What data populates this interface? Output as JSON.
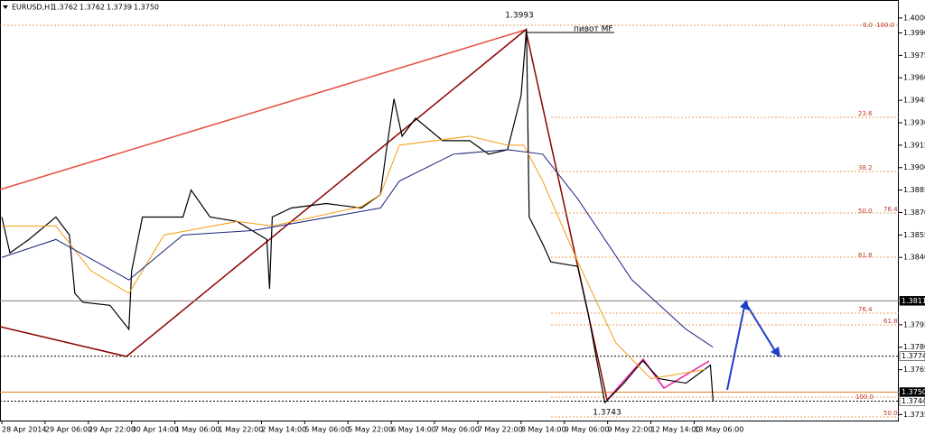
{
  "chart_data": {
    "type": "line",
    "title": "EURUSD,H1",
    "ohlc": [
      "1.3762",
      "1.3762",
      "1.3739",
      "1.3750"
    ],
    "xlim": [
      0,
      331
    ],
    "ylim": [
      1.3731,
      1.4012
    ],
    "xticks": [
      {
        "value": 0,
        "label": "28 Apr 2014"
      },
      {
        "value": 16,
        "label": "29 Apr 06:00"
      },
      {
        "value": 32,
        "label": "29 Apr 22:00"
      },
      {
        "value": 48,
        "label": "30 Apr 14:00"
      },
      {
        "value": 64,
        "label": "1 May 06:00"
      },
      {
        "value": 80,
        "label": "1 May 22:00"
      },
      {
        "value": 96,
        "label": "2 May 14:00"
      },
      {
        "value": 112,
        "label": "5 May 06:00"
      },
      {
        "value": 128,
        "label": "5 May 22:00"
      },
      {
        "value": 144,
        "label": "6 May 14:00"
      },
      {
        "value": 160,
        "label": "7 May 06:00"
      },
      {
        "value": 176,
        "label": "7 May 22:00"
      },
      {
        "value": 192,
        "label": "8 May 14:00"
      },
      {
        "value": 208,
        "label": "9 May 06:00"
      },
      {
        "value": 224,
        "label": "9 May 22:00"
      },
      {
        "value": 240,
        "label": "12 May 14:00"
      },
      {
        "value": 256,
        "label": "13 May 06:00"
      }
    ],
    "yticks": [
      {
        "value": 1.4,
        "label": "1.4000"
      },
      {
        "value": 1.399,
        "label": "1.3990"
      },
      1.3975,
      {
        "value": 1.396,
        "label": "1.3960"
      },
      1.3945,
      {
        "value": 1.393,
        "label": "1.3930"
      },
      1.3915,
      {
        "value": 1.39,
        "label": "1.3900"
      },
      1.3885,
      {
        "value": 1.387,
        "label": "1.3870"
      },
      1.3855,
      {
        "value": 1.384,
        "label": "1.3840"
      },
      1.3795,
      {
        "value": 1.378,
        "label": "1.3780"
      },
      1.3765,
      1.3735
    ],
    "series": [
      {
        "color": "#000000",
        "x": [
          0,
          3,
          10,
          20,
          25,
          27,
          30,
          40,
          47,
          48,
          52,
          67,
          70,
          77,
          87,
          98,
          99,
          100,
          107,
          120,
          133,
          140,
          142,
          145,
          148,
          153,
          163,
          173,
          180,
          187,
          192,
          194,
          195,
          200,
          203,
          213,
          217,
          220,
          223,
          230,
          237,
          243,
          253,
          262,
          263
        ],
        "values": [
          1.3867,
          1.3843,
          1.3852,
          1.3867,
          1.3855,
          1.3816,
          1.381,
          1.3808,
          1.3792,
          1.3831,
          1.3867,
          1.3867,
          1.3885,
          1.3867,
          1.3864,
          1.3852,
          1.3819,
          1.3867,
          1.3873,
          1.3876,
          1.3873,
          1.3882,
          1.3909,
          1.3946,
          1.3921,
          1.3933,
          1.3918,
          1.3918,
          1.3909,
          1.3912,
          1.3948,
          1.3993,
          1.3867,
          1.3849,
          1.3837,
          1.3834,
          1.3801,
          1.3771,
          1.3743,
          1.3756,
          1.3771,
          1.3759,
          1.3756,
          1.3768,
          1.3744
        ]
      },
      {
        "color": "#f39c12",
        "x": [
          0,
          20,
          33,
          47,
          60,
          87,
          100,
          133,
          140,
          147,
          173,
          187,
          193,
          200,
          213,
          227,
          240,
          260
        ],
        "values": [
          1.3861,
          1.3861,
          1.3831,
          1.3816,
          1.3855,
          1.3864,
          1.3861,
          1.3874,
          1.3882,
          1.3915,
          1.3921,
          1.3915,
          1.3915,
          1.3891,
          1.3837,
          1.3783,
          1.3759,
          1.3765
        ]
      },
      {
        "color": "#1a237e",
        "x": [
          0,
          20,
          47,
          67,
          93,
          140,
          147,
          167,
          187,
          200,
          213,
          233,
          253,
          263
        ],
        "values": [
          1.384,
          1.3852,
          1.3825,
          1.3855,
          1.3858,
          1.3873,
          1.3891,
          1.3909,
          1.3912,
          1.3909,
          1.3879,
          1.3825,
          1.3792,
          1.378
        ]
      }
    ],
    "levels": [
      {
        "value": 1.3811,
        "color": "#808080",
        "style": "solid",
        "boxed": true
      },
      {
        "value": 1.3774,
        "color": "#000000",
        "style": "dotted",
        "boxed": false
      },
      {
        "value": 1.375,
        "label": "1.3750",
        "color": "#e67e22",
        "style": "solid",
        "boxed": true
      },
      {
        "value": 1.3744,
        "color": "#000000",
        "style": "dotted",
        "boxed": false
      }
    ],
    "fib_labels": [
      "0.0",
      "100.0",
      "23.6",
      "38.2",
      "50.0",
      "76.4",
      "61.8",
      "76.4",
      "61.8",
      "100.0",
      "50.0"
    ],
    "annotations": [
      "1.3993",
      "1.3743",
      "пивот MF"
    ]
  }
}
